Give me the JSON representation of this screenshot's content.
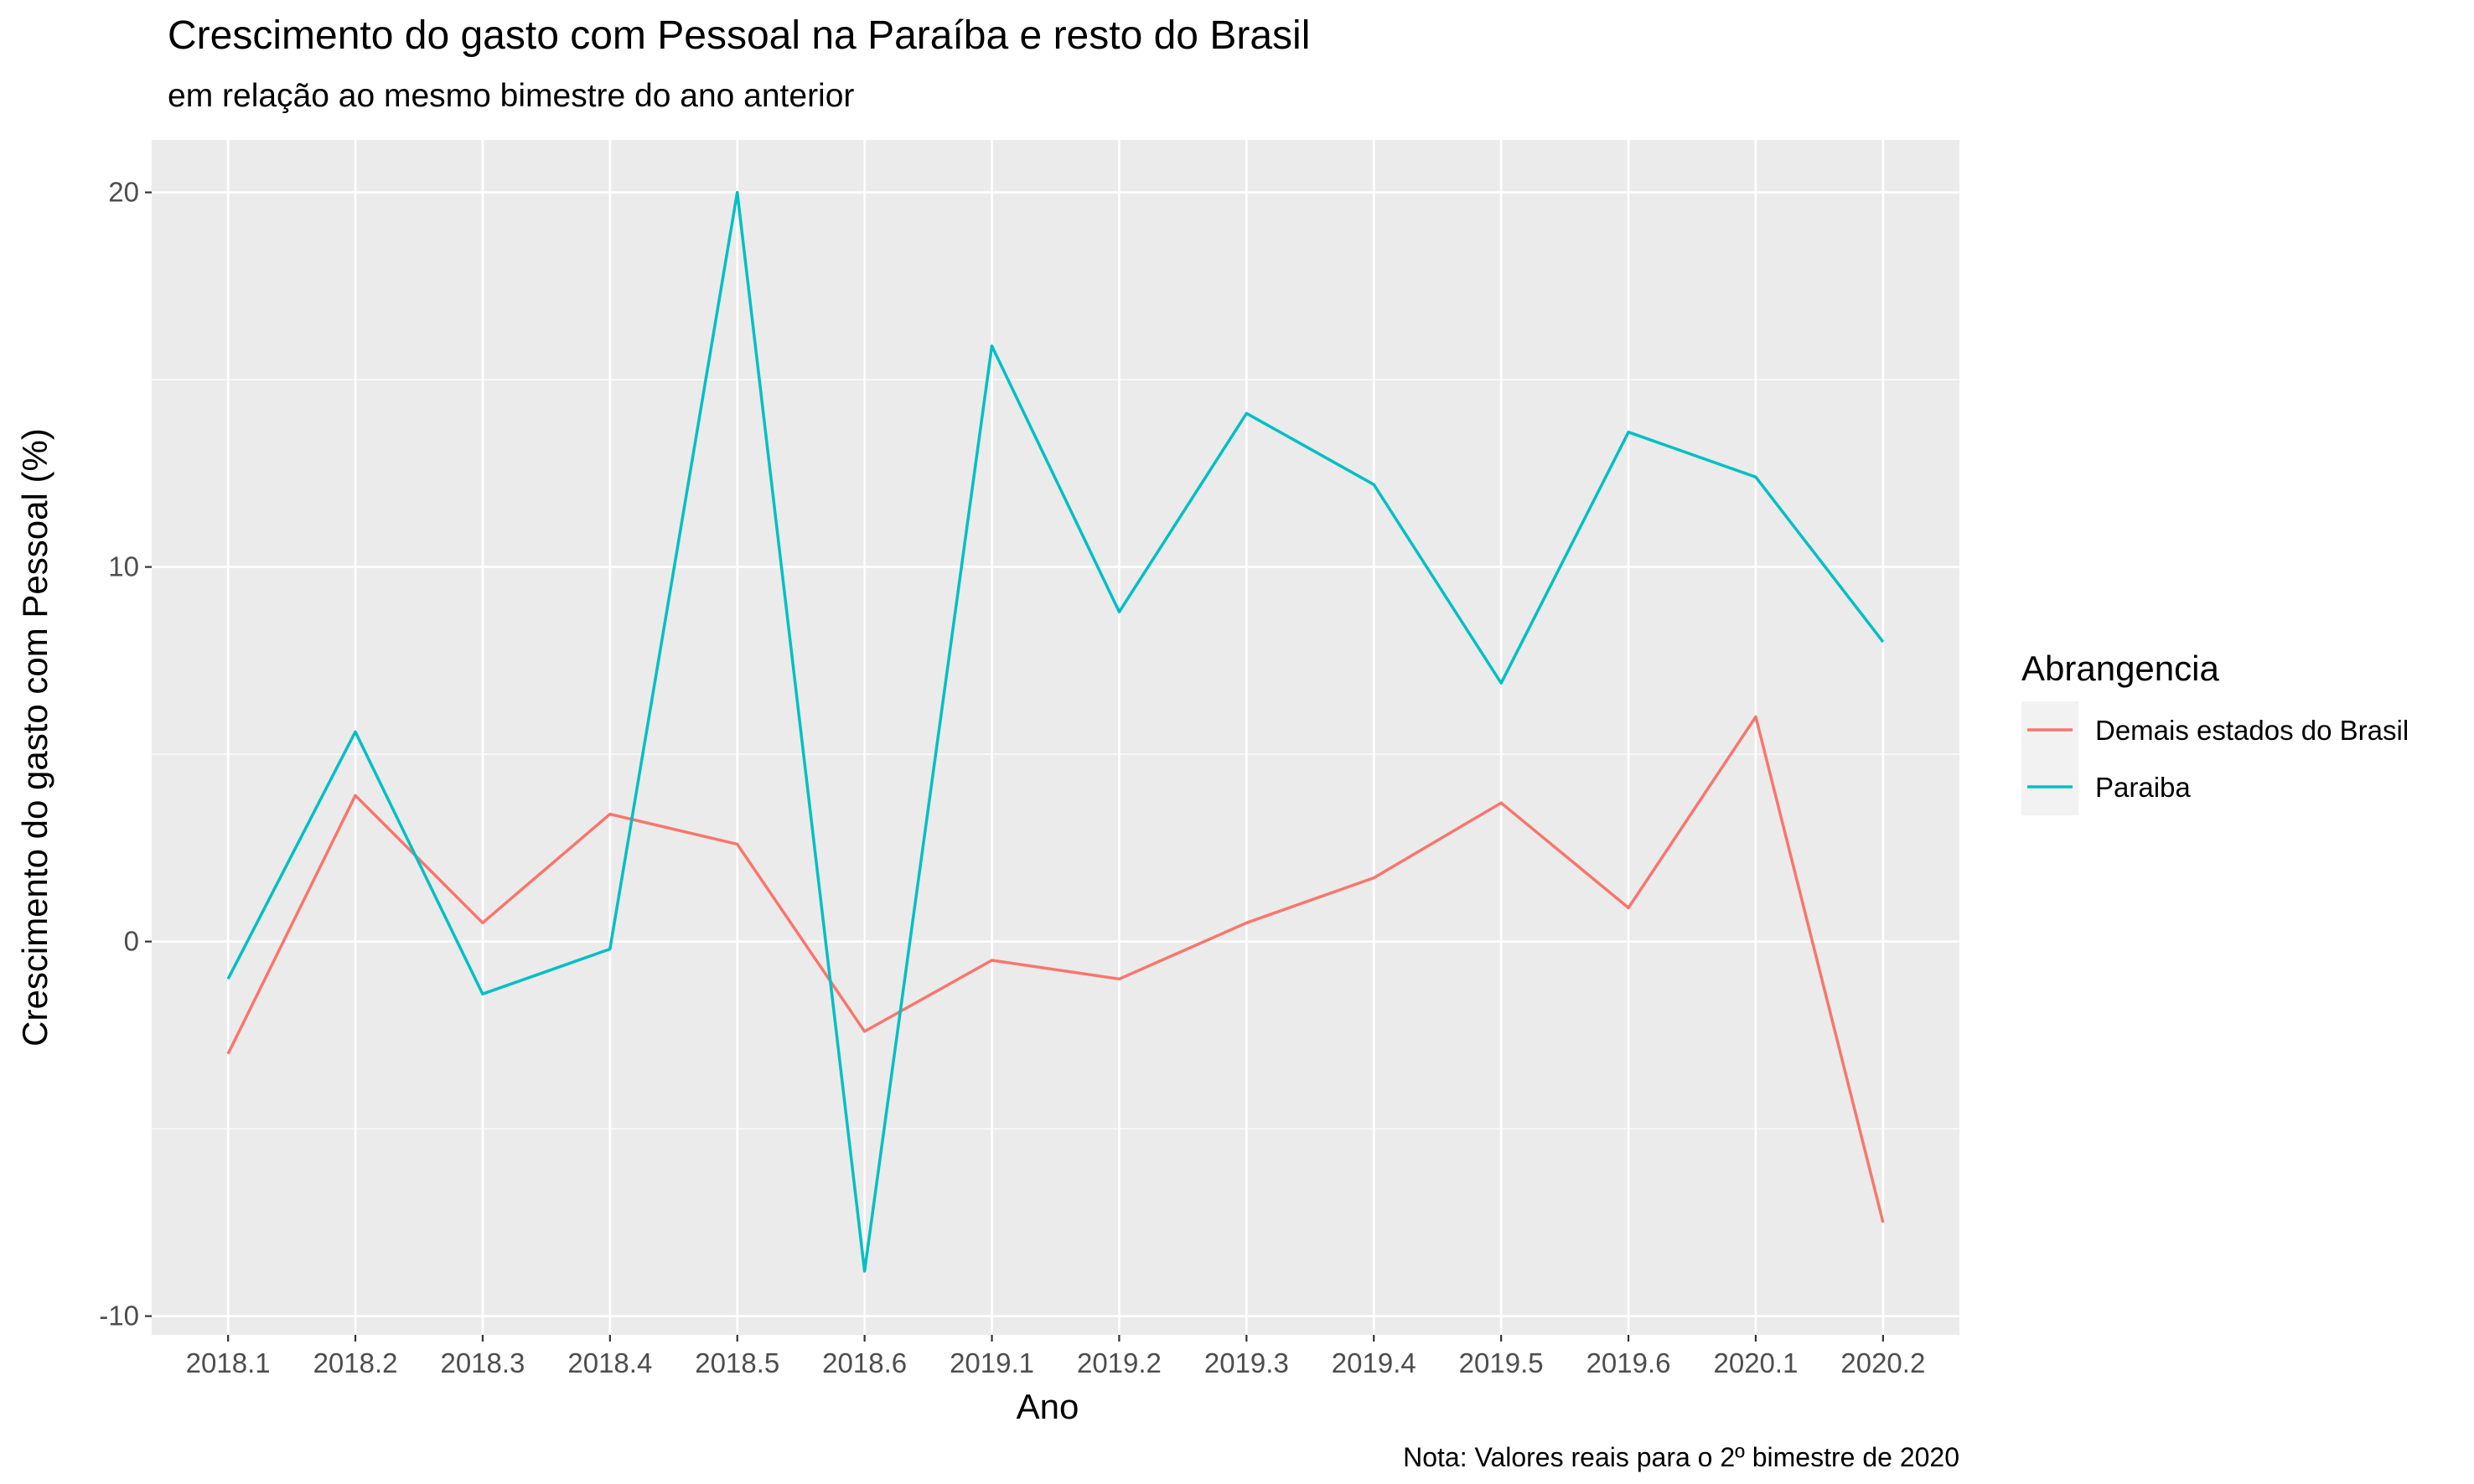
{
  "chart_data": {
    "type": "line",
    "title": "Crescimento do gasto com Pessoal na Paraíba e resto do Brasil",
    "subtitle": "em relação ao mesmo bimestre do ano anterior",
    "xlabel": "Ano",
    "ylabel": "Crescimento do gasto com Pessoal (%)",
    "caption": "Nota: Valores reais para o 2º bimestre de 2020",
    "categories": [
      "2018.1",
      "2018.2",
      "2018.3",
      "2018.4",
      "2018.5",
      "2018.6",
      "2019.1",
      "2019.2",
      "2019.3",
      "2019.4",
      "2019.5",
      "2019.6",
      "2020.1",
      "2020.2"
    ],
    "ylim": [
      -10.5,
      21.4
    ],
    "yticks": [
      -10,
      0,
      10,
      20
    ],
    "ytick_labels": [
      "-10",
      "0",
      "10",
      "20"
    ],
    "grid": true,
    "legend": {
      "title": "Abrangencia",
      "position": "right"
    },
    "series": [
      {
        "name": "Demais estados do Brasil",
        "color": "#F8766D",
        "values": [
          -3.0,
          3.9,
          0.5,
          3.4,
          2.6,
          -2.4,
          -0.5,
          -1.0,
          0.5,
          1.7,
          3.7,
          0.9,
          6.0,
          -7.5
        ]
      },
      {
        "name": "Paraiba",
        "color": "#00BFC4",
        "values": [
          -1.0,
          5.6,
          -1.4,
          -0.2,
          20.0,
          -8.8,
          15.9,
          8.8,
          14.1,
          12.2,
          6.9,
          13.6,
          12.4,
          8.0
        ]
      }
    ]
  }
}
